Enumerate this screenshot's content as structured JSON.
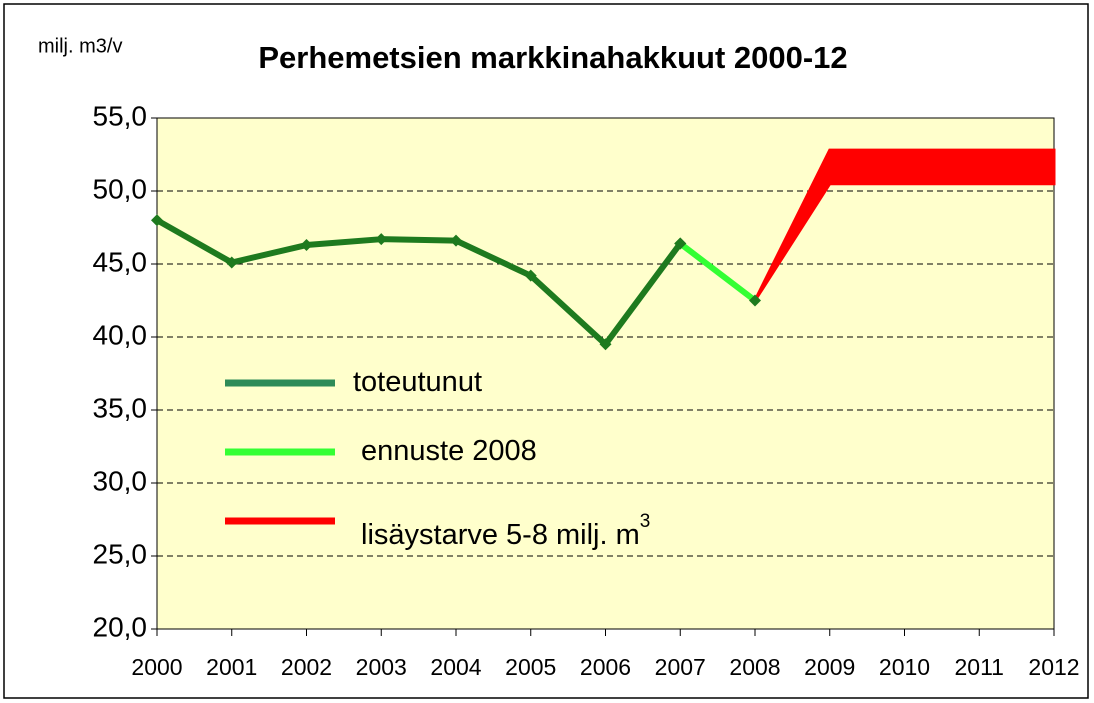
{
  "chart_data": {
    "type": "line",
    "title": "Perhemetsien markkinahakkuut 2000-12",
    "y_axis_label": "milj. m3/v",
    "categories": [
      "2000",
      "2001",
      "2002",
      "2003",
      "2004",
      "2005",
      "2006",
      "2007",
      "2008",
      "2009",
      "2010",
      "2011",
      "2012"
    ],
    "series": [
      {
        "name": "toteutunut",
        "color": "#1e7a1e",
        "marker": "diamond",
        "values": [
          48.0,
          45.1,
          46.3,
          46.7,
          46.6,
          44.2,
          39.5,
          46.4,
          null,
          null,
          null,
          null,
          null
        ]
      },
      {
        "name": "ennuste 2008",
        "color": "#33ff33",
        "marker": "diamond",
        "values": [
          null,
          null,
          null,
          null,
          null,
          null,
          null,
          46.4,
          42.5,
          null,
          null,
          null,
          null
        ]
      },
      {
        "name": "lisäystarve 5-8 milj. m",
        "name_superscript": "3",
        "color": "#ff0000",
        "marker": "none",
        "values": [
          null,
          null,
          null,
          null,
          null,
          null,
          null,
          null,
          42.5,
          52.8,
          52.8,
          52.8,
          52.8
        ],
        "band_low": [
          null,
          null,
          null,
          null,
          null,
          null,
          null,
          null,
          42.5,
          50.5,
          50.5,
          50.5,
          50.5
        ]
      }
    ],
    "ylim": [
      20,
      55
    ],
    "yticks": [
      {
        "value": 20,
        "label": "20,0"
      },
      {
        "value": 25,
        "label": "25,0"
      },
      {
        "value": 30,
        "label": "30,0"
      },
      {
        "value": 35,
        "label": "35,0"
      },
      {
        "value": 40,
        "label": "40,0"
      },
      {
        "value": 45,
        "label": "45,0"
      },
      {
        "value": 50,
        "label": "50,0"
      },
      {
        "value": 55,
        "label": "55,0"
      }
    ],
    "grid": true,
    "plot_background": "#ffffcc"
  }
}
